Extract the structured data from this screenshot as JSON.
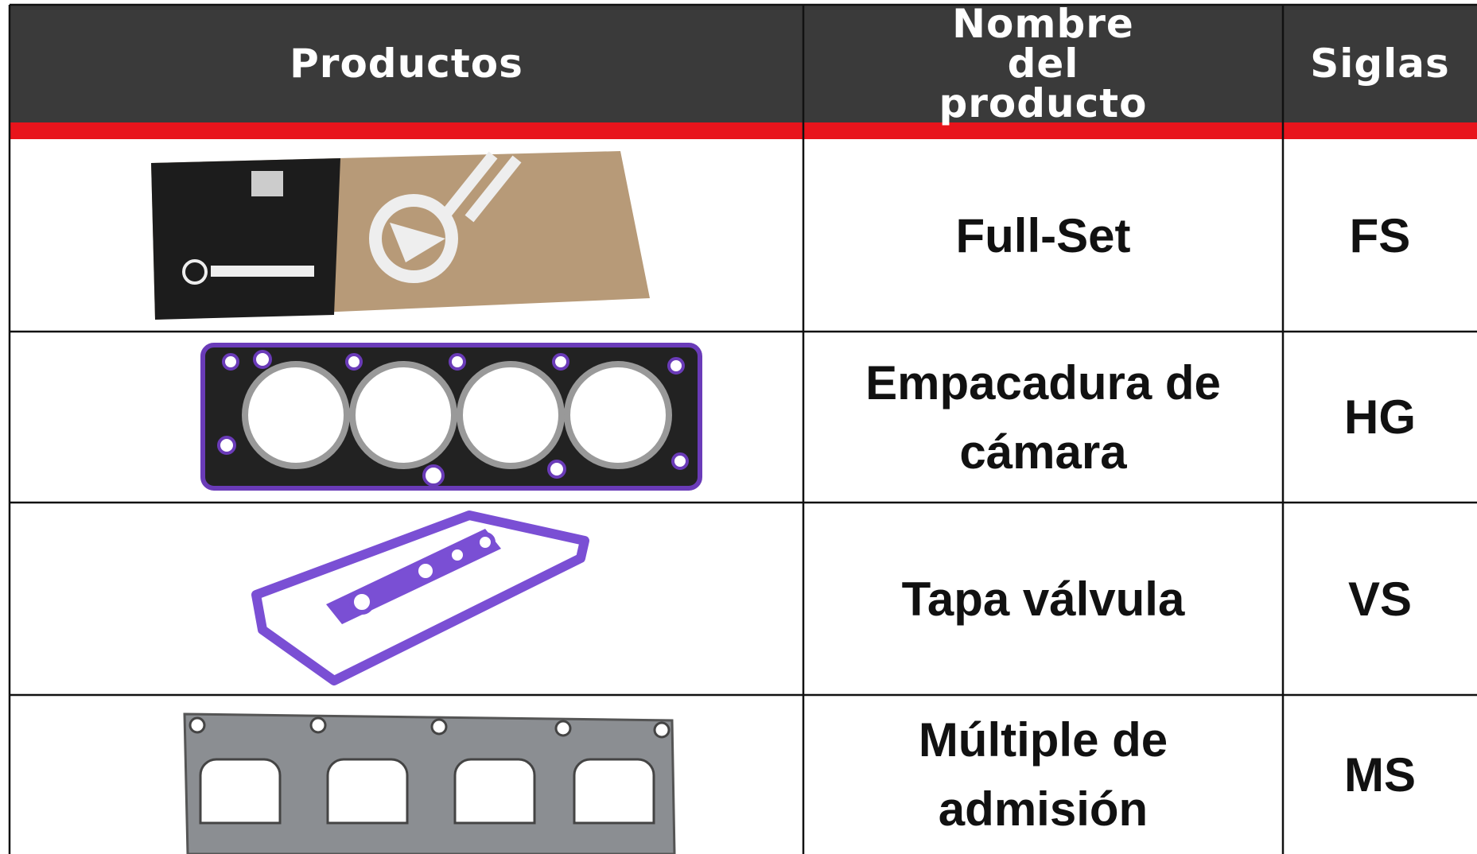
{
  "header": {
    "columns": [
      "Productos",
      "Nombre del producto",
      "Siglas"
    ]
  },
  "rows": [
    {
      "name": "Full-Set",
      "code": "FS"
    },
    {
      "name": "Empacadura de cámara",
      "code": "HG"
    },
    {
      "name": "Tapa válvula",
      "code": "VS"
    },
    {
      "name": "Múltiple de admisión",
      "code": "MS"
    }
  ]
}
